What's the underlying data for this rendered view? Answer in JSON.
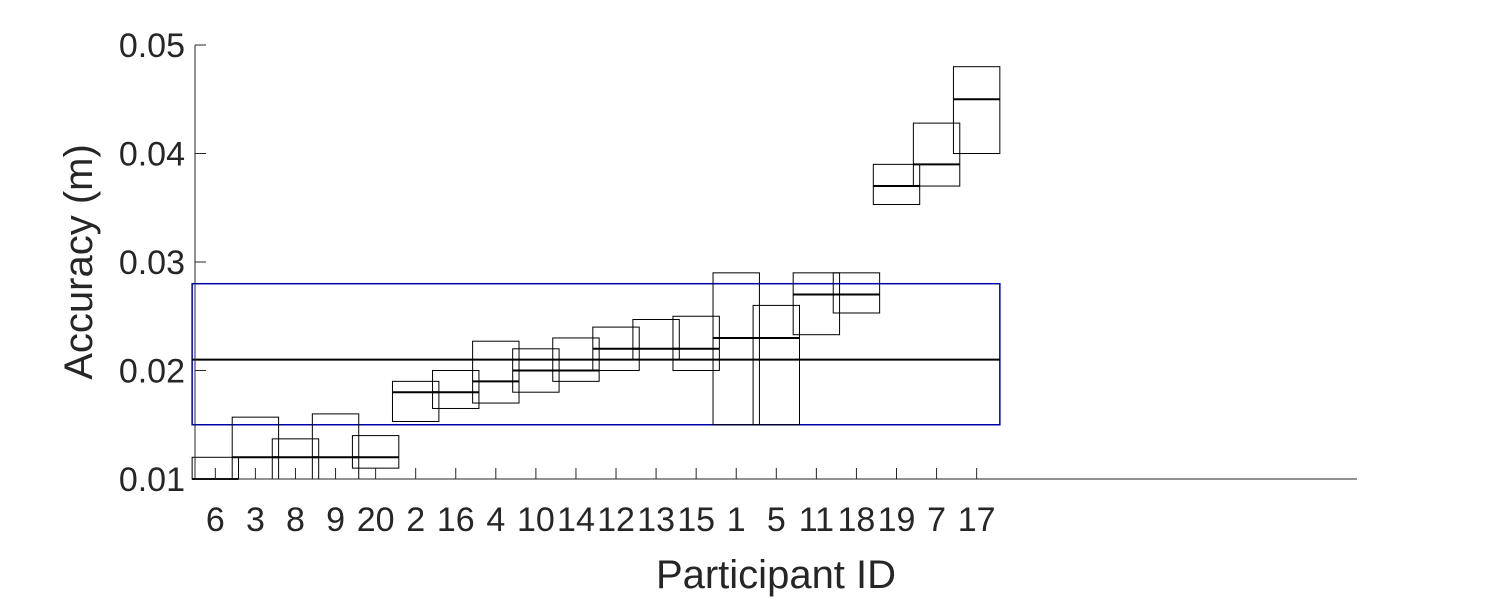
{
  "chart_data": {
    "type": "box",
    "xlabel": "Participant ID",
    "ylabel": "Accuracy (m)",
    "ylim": [
      0.01,
      0.05
    ],
    "yticks": [
      0.01,
      0.02,
      0.03,
      0.04,
      0.05
    ],
    "ytick_labels": [
      "0.01",
      "0.02",
      "0.03",
      "0.04",
      "0.05"
    ],
    "categories": [
      "6",
      "3",
      "8",
      "9",
      "20",
      "2",
      "16",
      "4",
      "10",
      "14",
      "12",
      "13",
      "15",
      "1",
      "5",
      "11",
      "18",
      "19",
      "7",
      "17"
    ],
    "boxes": [
      {
        "id": "6",
        "q1": 0.01,
        "median": 0.01,
        "q3": 0.012
      },
      {
        "id": "3",
        "q1": 0.01,
        "median": 0.012,
        "q3": 0.0157
      },
      {
        "id": "8",
        "q1": 0.01,
        "median": 0.012,
        "q3": 0.0137
      },
      {
        "id": "9",
        "q1": 0.01,
        "median": 0.012,
        "q3": 0.016
      },
      {
        "id": "20",
        "q1": 0.011,
        "median": 0.012,
        "q3": 0.014
      },
      {
        "id": "2",
        "q1": 0.0153,
        "median": 0.018,
        "q3": 0.019
      },
      {
        "id": "16",
        "q1": 0.0165,
        "median": 0.018,
        "q3": 0.02
      },
      {
        "id": "4",
        "q1": 0.017,
        "median": 0.019,
        "q3": 0.0227
      },
      {
        "id": "10",
        "q1": 0.018,
        "median": 0.02,
        "q3": 0.022
      },
      {
        "id": "14",
        "q1": 0.019,
        "median": 0.02,
        "q3": 0.023
      },
      {
        "id": "12",
        "q1": 0.02,
        "median": 0.022,
        "q3": 0.024
      },
      {
        "id": "13",
        "q1": 0.021,
        "median": 0.022,
        "q3": 0.0247
      },
      {
        "id": "15",
        "q1": 0.02,
        "median": 0.022,
        "q3": 0.025
      },
      {
        "id": "1",
        "q1": 0.015,
        "median": 0.023,
        "q3": 0.029
      },
      {
        "id": "5",
        "q1": 0.015,
        "median": 0.023,
        "q3": 0.026
      },
      {
        "id": "11",
        "q1": 0.0233,
        "median": 0.027,
        "q3": 0.029
      },
      {
        "id": "18",
        "q1": 0.0253,
        "median": 0.027,
        "q3": 0.029
      },
      {
        "id": "19",
        "q1": 0.0353,
        "median": 0.037,
        "q3": 0.039
      },
      {
        "id": "7",
        "q1": 0.037,
        "median": 0.039,
        "q3": 0.0428
      },
      {
        "id": "17",
        "q1": 0.04,
        "median": 0.045,
        "q3": 0.048
      }
    ],
    "overall_box": {
      "q1": 0.015,
      "median": 0.021,
      "q3": 0.028,
      "color": "#0000aa"
    },
    "extra_x_slots": 9,
    "colors": {
      "axis": "#262626",
      "box": "#000000",
      "overall": "#0000aa"
    }
  }
}
